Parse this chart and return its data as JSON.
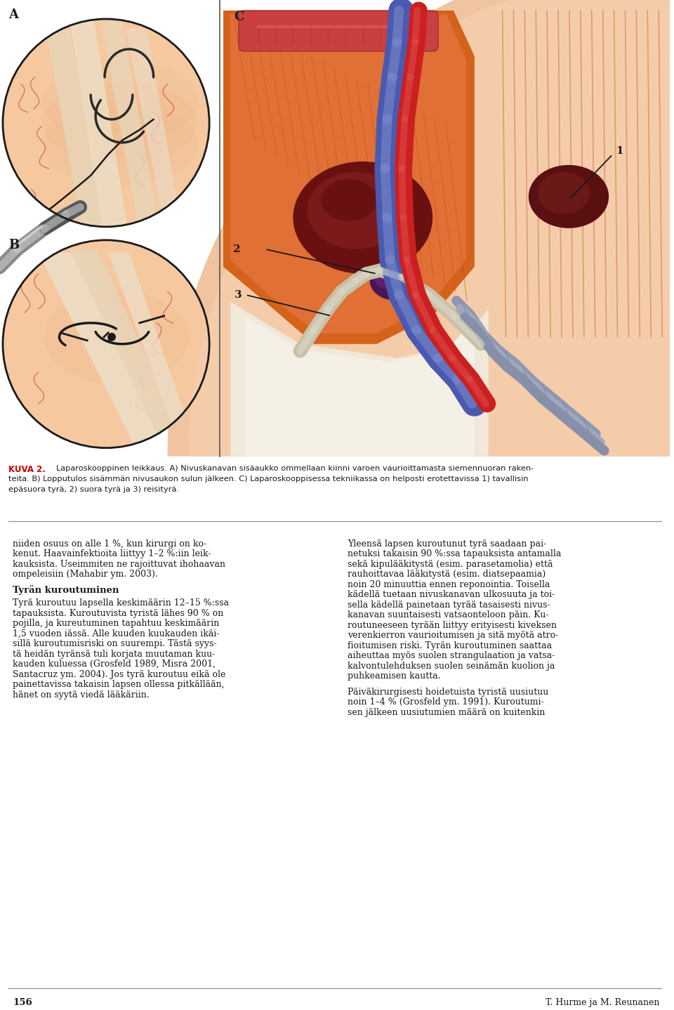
{
  "page_bg": "#ffffff",
  "figure_width": 9.6,
  "figure_height": 14.38,
  "label_A": "A",
  "label_B": "B",
  "label_C": "C",
  "kuva_label": "KUVA 2.",
  "kuva_text_line1": "Laparoskooppinen leikkaus. A) Nivuskanavan sisäaukko ommellaan kiinni varoen vaurioittamasta siemennuoran raken-",
  "kuva_text_line2": "teita. B) Lopputulos sisämmän nivusaukon sulun jälkeen. C) Laparoskooppisessa tekniikassa on helposti erotettavissa 1) tavallisin",
  "kuva_text_line3": "epäsuora tyrä, 2) suora tyrä ja 3) reisityrä.",
  "body_text_left_line1": "niiden osuus on alle 1 %, kun kirurgi on ko-",
  "body_text_left_line2": "kenut. Haavainfektioita liittyy 1–2 %:iin leik-",
  "body_text_left_line3": "kauksista. Useimmiten ne rajoittuvat ihohaavan",
  "body_text_left_line4": "ompeleisiin (Mahabir ym. 2003).",
  "section_title": "Tyrän kuroutuminen",
  "body_left2_lines": [
    "Tyrä kuroutuu lapsella keskimäärin 12–15 %:ssa",
    "tapauksista. Kuroutuvista tyristä lähes 90 % on",
    "pojilla, ja kureutuminen tapahtuu keskimäärin",
    "1,5 vuoden iässä. Alle kuuden kuukauden ikäi-",
    "sillä kuroutumisriski on suurempi. Tästä syys-",
    "tä heidän tyränsä tuli korjata muutaman kuu-",
    "kauden kuluessa (Grosfeld 1989, Misra 2001,",
    "Santacruz ym. 2004). Jos tyrä kuroutuu eikä ole",
    "painettavissa takaisin lapsen ollessa pitkällään,",
    "hänet on syytä viedä lääkäriin."
  ],
  "body_right1_lines": [
    "Yleensä lapsen kuroutunut tyrä saadaan pai-",
    "netuksi takaisin 90 %:ssa tapauksista antamalla",
    "sekä kipulääkitystä (esim. parasetamolia) että",
    "rauhoittavaa lääkitystä (esim. diatsepaamia)",
    "noin 20 minuuttia ennen reponointia. Toisella",
    "kädellä tuetaan nivuskanavan ulkosuuta ja toi-",
    "sella kädellä painetaan tyrää tasaisesti nivus-",
    "kanavan suuntaisesti vatsaonteloon päin. Ku-",
    "routuneeseen tyrään liittyy erityisesti kiveksen",
    "verenkierron vaurioitumisen ja sitä myötä atro-",
    "fioitumisen riski. Tyrän kuroutuminen saattaa",
    "aiheuttaa myös suolen strangulaation ja vatsa-",
    "kalvontulehduksen suolen seinämän kuolion ja",
    "puhkeamisen kautta."
  ],
  "body_right2_lines": [
    "Päiväkirurgisesti hoidetuista tyristä uusiutuu",
    "noin 1–4 % (Grosfeld ym. 1991). Kuroutumi-",
    "sen jälkeen uusiutumien määrä on kuitenkin"
  ],
  "page_number": "156",
  "author": "T. Hurme ja M. Reunanen",
  "skin_light": "#f5c8a0",
  "skin_mid": "#e8a878",
  "skin_dark_orange": "#d4722a",
  "orange_muscle": "#d4621a",
  "orange_wall": "#e07830",
  "cream": "#f0e8d8",
  "cream2": "#ede0c8",
  "dark_red_mass": "#6b1515",
  "purple_mass": "#4a1a5a",
  "blue_vessel": "#4a5ab0",
  "blue_vessel_light": "#8090cc",
  "red_vessel": "#cc2020",
  "gray_vessel": "#a0a8b8",
  "gray_vessel2": "#c8ccd8",
  "text_color": "#1a1a1a",
  "kuva_color": "#cc0000",
  "line_color": "#555555"
}
